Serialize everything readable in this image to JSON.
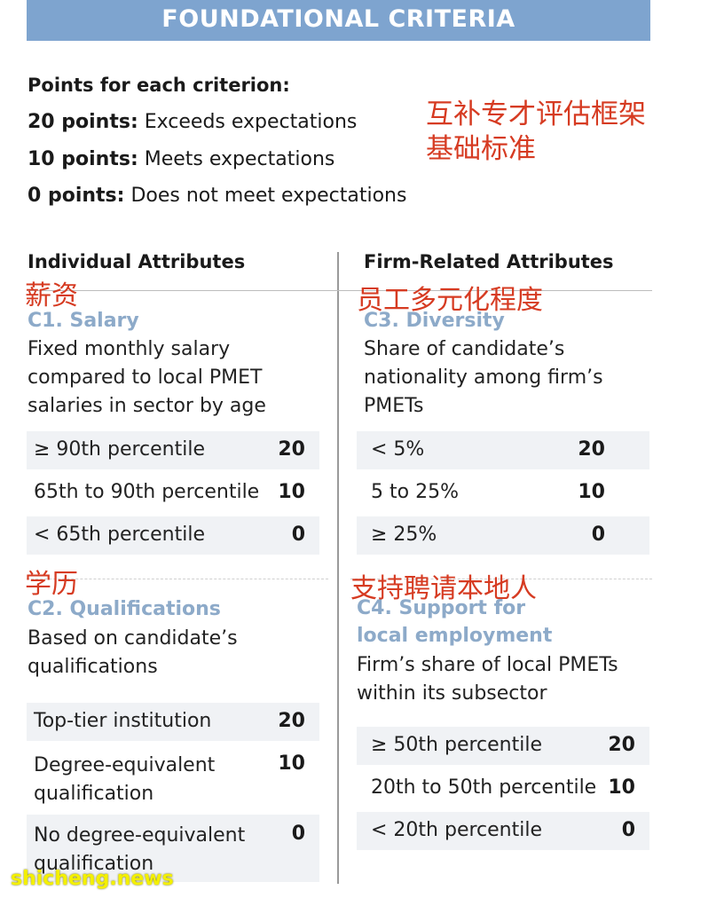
{
  "banner": {
    "title": "FOUNDATIONAL CRITERIA"
  },
  "points": {
    "heading": "Points for each criterion:",
    "rows": [
      {
        "points": "20 points:",
        "text": "Exceeds expectations"
      },
      {
        "points": "10 points:",
        "text": "Meets expectations"
      },
      {
        "points": "0 points:",
        "text": "Does not meet expectations"
      }
    ]
  },
  "zh": {
    "title_line1": "互补专才评估框架",
    "title_line2": "基础标准",
    "salary": "薪资",
    "diversity": "员工多元化程度",
    "qualifications": "学历",
    "support": "支持聘请本地人"
  },
  "columns": {
    "left_heading": "Individual Attributes",
    "right_heading": "Firm-Related Attributes"
  },
  "c1": {
    "title": "C1. Salary",
    "desc": [
      "Fixed monthly salary",
      "compared to local PMET",
      "salaries in sector by age"
    ],
    "rows": [
      {
        "label": "≥ 90th percentile",
        "points": "20"
      },
      {
        "label": "65th to 90th percentile",
        "points": "10"
      },
      {
        "label": "< 65th percentile",
        "points": "0"
      }
    ]
  },
  "c2": {
    "title": "C2. Qualifications",
    "desc": [
      "Based on candidate’s",
      "qualifications"
    ],
    "rows": [
      {
        "label": "Top-tier institution",
        "points": "20"
      },
      {
        "label_line1": "Degree-equivalent",
        "label_line2": "qualification",
        "points": "10"
      },
      {
        "label_line1": "No degree-equivalent",
        "label_line2": "qualification",
        "points": "0"
      }
    ]
  },
  "c3": {
    "title": "C3. Diversity",
    "desc": [
      "Share of candidate’s",
      "nationality among firm’s",
      "PMETs"
    ],
    "rows": [
      {
        "label": "< 5%",
        "points": "20"
      },
      {
        "label": "5 to 25%",
        "points": "10"
      },
      {
        "label": "≥ 25%",
        "points": "0"
      }
    ]
  },
  "c4": {
    "title_line1": "C4. Support for",
    "title_line2": "local employment",
    "desc": [
      "Firm’s share of local PMETs",
      "within its subsector"
    ],
    "rows": [
      {
        "label": "≥ 50th percentile",
        "points": "20"
      },
      {
        "label": "20th to 50th percentile",
        "points": "10"
      },
      {
        "label": "< 20th percentile",
        "points": "0"
      }
    ]
  },
  "watermark": "shicheng.news",
  "colors": {
    "banner": "#7ea4cf",
    "title_blue": "#8daac9",
    "red": "#d63b22",
    "row_bg": "#f0f2f5"
  }
}
